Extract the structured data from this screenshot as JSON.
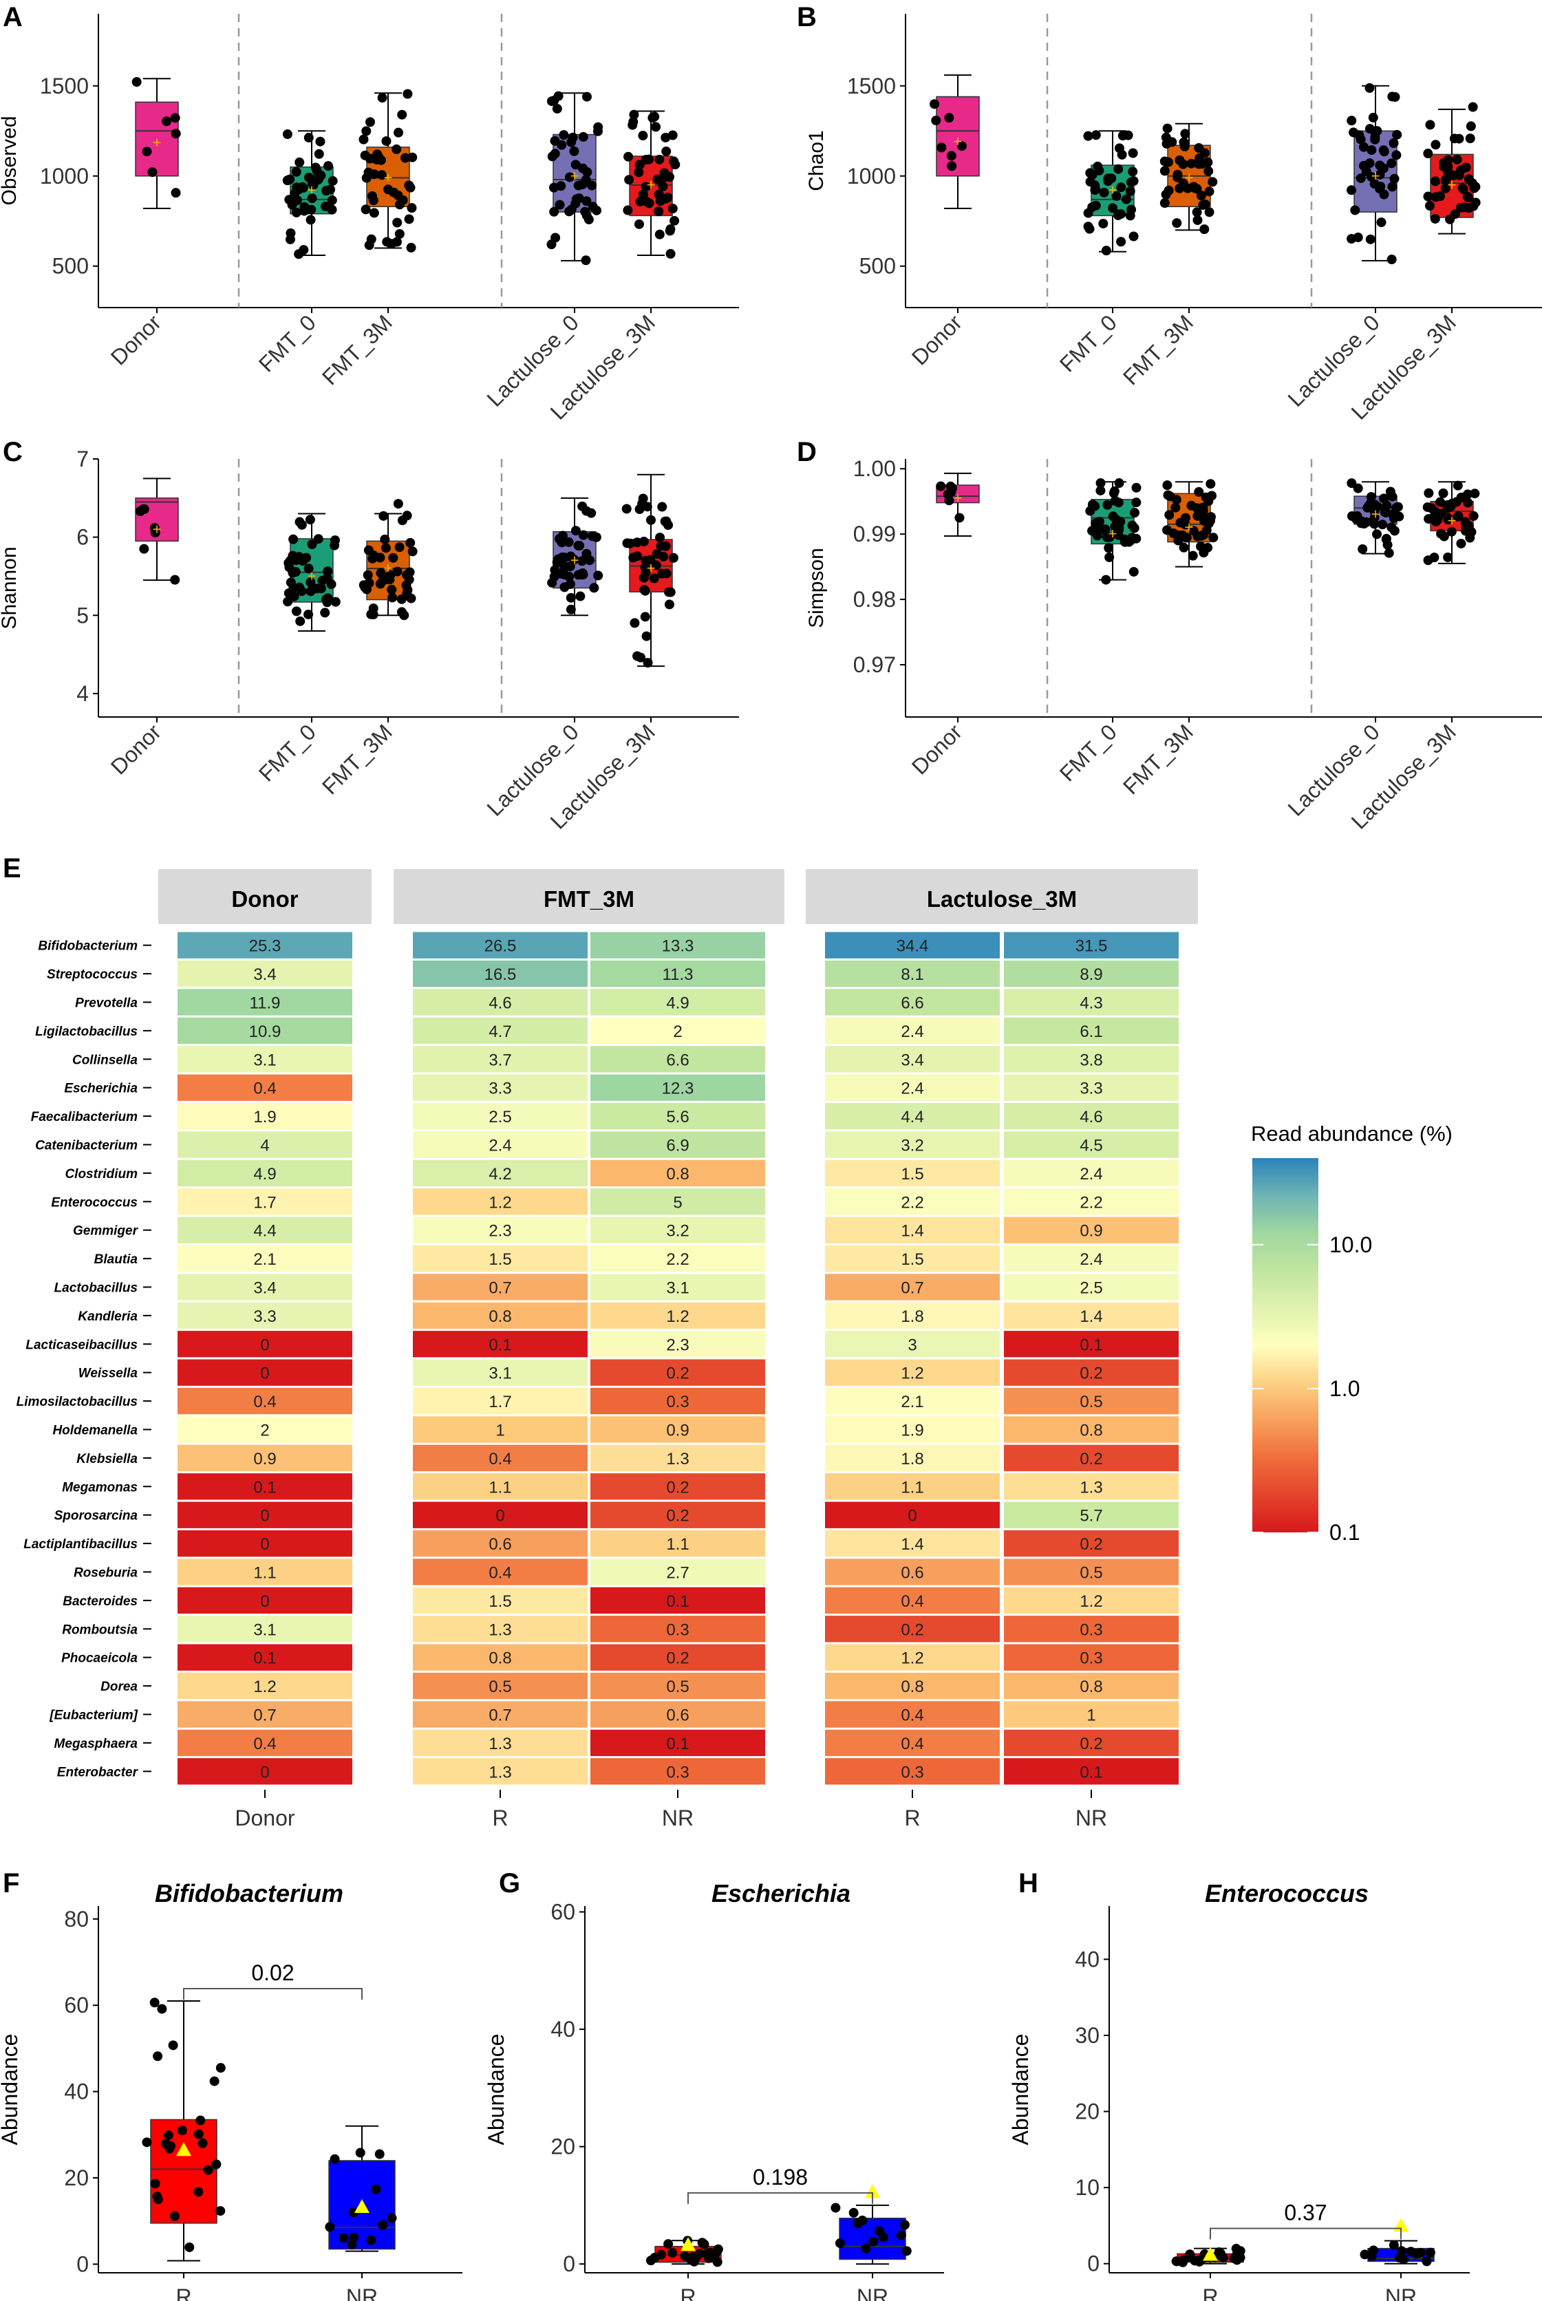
{
  "panel_labels": [
    "A",
    "B",
    "C",
    "D",
    "E",
    "F",
    "G",
    "H"
  ],
  "chart_data": [
    {
      "type": "box",
      "panel": "A",
      "ylabel": "Observed",
      "ylim": [
        270,
        1900
      ],
      "yticks": [
        500,
        1000,
        1500
      ],
      "categories": [
        "Donor",
        "FMT_0",
        "FMT_3M",
        "Lactulose_0",
        "Lactulose_3M"
      ],
      "colors": [
        "#e7298a",
        "#1b9e77",
        "#d95f02",
        "#7570b3",
        "#e41a1c"
      ],
      "boxes": [
        {
          "q1": 1000,
          "median": 1250,
          "q3": 1410,
          "lo": 820,
          "hi": 1540,
          "mean": 1185
        },
        {
          "q1": 790,
          "median": 870,
          "q3": 1050,
          "lo": 560,
          "hi": 1250,
          "mean": 920
        },
        {
          "q1": 830,
          "median": 990,
          "q3": 1160,
          "lo": 600,
          "hi": 1460,
          "mean": 990
        },
        {
          "q1": 800,
          "median": 980,
          "q3": 1230,
          "lo": 530,
          "hi": 1460,
          "mean": 1000
        },
        {
          "q1": 780,
          "median": 950,
          "q3": 1110,
          "lo": 560,
          "hi": 1360,
          "mean": 950
        }
      ]
    },
    {
      "type": "box",
      "panel": "B",
      "ylabel": "Chao1",
      "ylim": [
        270,
        1900
      ],
      "yticks": [
        500,
        1000,
        1500
      ],
      "categories": [
        "Donor",
        "FMT_0",
        "FMT_3M",
        "Lactulose_0",
        "Lactulose_3M"
      ],
      "colors": [
        "#e7298a",
        "#1b9e77",
        "#d95f02",
        "#7570b3",
        "#e41a1c"
      ],
      "boxes": [
        {
          "q1": 1000,
          "median": 1250,
          "q3": 1440,
          "lo": 820,
          "hi": 1560,
          "mean": 1190
        },
        {
          "q1": 780,
          "median": 870,
          "q3": 1060,
          "lo": 580,
          "hi": 1250,
          "mean": 920
        },
        {
          "q1": 830,
          "median": 1000,
          "q3": 1170,
          "lo": 700,
          "hi": 1290,
          "mean": 990
        },
        {
          "q1": 800,
          "median": 990,
          "q3": 1250,
          "lo": 530,
          "hi": 1500,
          "mean": 1000
        },
        {
          "q1": 770,
          "median": 960,
          "q3": 1120,
          "lo": 680,
          "hi": 1370,
          "mean": 950
        }
      ]
    },
    {
      "type": "box",
      "panel": "C",
      "ylabel": "Shannon",
      "ylim": [
        3.7,
        7.0
      ],
      "yticks": [
        4,
        5,
        6,
        7
      ],
      "categories": [
        "Donor",
        "FMT_0",
        "FMT_3M",
        "Lactulose_0",
        "Lactulose_3M"
      ],
      "colors": [
        "#e7298a",
        "#1b9e77",
        "#d95f02",
        "#7570b3",
        "#e41a1c"
      ],
      "boxes": [
        {
          "q1": 5.95,
          "median": 6.45,
          "q3": 6.5,
          "lo": 5.45,
          "hi": 6.75,
          "mean": 6.1
        },
        {
          "q1": 5.17,
          "median": 5.55,
          "q3": 5.98,
          "lo": 4.8,
          "hi": 6.3,
          "mean": 5.5
        },
        {
          "q1": 5.2,
          "median": 5.6,
          "q3": 5.95,
          "lo": 5.0,
          "hi": 6.3,
          "mean": 5.6
        },
        {
          "q1": 5.35,
          "median": 5.7,
          "q3": 6.07,
          "lo": 5.0,
          "hi": 6.5,
          "mean": 5.7
        },
        {
          "q1": 5.3,
          "median": 5.63,
          "q3": 5.97,
          "lo": 4.35,
          "hi": 6.8,
          "mean": 5.6
        }
      ]
    },
    {
      "type": "box",
      "panel": "D",
      "ylabel": "Simpson",
      "ylim": [
        0.962,
        1.0015
      ],
      "yticks": [
        0.97,
        0.98,
        0.99,
        1.0
      ],
      "ytick_labels": [
        "0.97",
        "0.98",
        "0.99",
        "1.00"
      ],
      "categories": [
        "Donor",
        "FMT_0",
        "FMT_3M",
        "Lactulose_0",
        "Lactulose_3M"
      ],
      "colors": [
        "#e7298a",
        "#1b9e77",
        "#d95f02",
        "#7570b3",
        "#e41a1c"
      ],
      "boxes": [
        {
          "q1": 0.9948,
          "median": 0.9958,
          "q3": 0.9975,
          "lo": 0.9897,
          "hi": 0.9993,
          "mean": 0.9955
        },
        {
          "q1": 0.9885,
          "median": 0.9925,
          "q3": 0.9953,
          "lo": 0.983,
          "hi": 0.998,
          "mean": 0.99
        },
        {
          "q1": 0.9888,
          "median": 0.9915,
          "q3": 0.9962,
          "lo": 0.985,
          "hi": 0.998,
          "mean": 0.991
        },
        {
          "q1": 0.9915,
          "median": 0.994,
          "q3": 0.9958,
          "lo": 0.987,
          "hi": 0.998,
          "mean": 0.993
        },
        {
          "q1": 0.9905,
          "median": 0.9935,
          "q3": 0.995,
          "lo": 0.9855,
          "hi": 0.998,
          "mean": 0.992
        }
      ]
    },
    {
      "type": "heatmap",
      "panel": "E",
      "facets": [
        {
          "title": "Donor",
          "columns": [
            "Donor"
          ]
        },
        {
          "title": "FMT_3M",
          "columns": [
            "R",
            "NR"
          ]
        },
        {
          "title": "Lactulose_3M",
          "columns": [
            "R",
            "NR"
          ]
        }
      ],
      "legend_title": "Read abundance (%)",
      "legend_ticks": [
        "10.0",
        "1.0",
        "0.1"
      ],
      "rows": [
        {
          "genus": "Bifidobacterium",
          "values": [
            "25.3",
            "26.5",
            "13.3",
            "34.4",
            "31.5"
          ]
        },
        {
          "genus": "Streptococcus",
          "values": [
            "3.4",
            "16.5",
            "11.3",
            "8.1",
            "8.9"
          ]
        },
        {
          "genus": "Prevotella",
          "values": [
            "11.9",
            "4.6",
            "4.9",
            "6.6",
            "4.3"
          ]
        },
        {
          "genus": "Ligilactobacillus",
          "values": [
            "10.9",
            "4.7",
            "2",
            "2.4",
            "6.1"
          ]
        },
        {
          "genus": "Collinsella",
          "values": [
            "3.1",
            "3.7",
            "6.6",
            "3.4",
            "3.8"
          ]
        },
        {
          "genus": "Escherichia",
          "values": [
            "0.4",
            "3.3",
            "12.3",
            "2.4",
            "3.3"
          ]
        },
        {
          "genus": "Faecalibacterium",
          "values": [
            "1.9",
            "2.5",
            "5.6",
            "4.4",
            "4.6"
          ]
        },
        {
          "genus": "Catenibacterium",
          "values": [
            "4",
            "2.4",
            "6.9",
            "3.2",
            "4.5"
          ]
        },
        {
          "genus": "Clostridium",
          "values": [
            "4.9",
            "4.2",
            "0.8",
            "1.5",
            "2.4"
          ]
        },
        {
          "genus": "Enterococcus",
          "values": [
            "1.7",
            "1.2",
            "5",
            "2.2",
            "2.2"
          ]
        },
        {
          "genus": "Gemmiger",
          "values": [
            "4.4",
            "2.3",
            "3.2",
            "1.4",
            "0.9"
          ]
        },
        {
          "genus": "Blautia",
          "values": [
            "2.1",
            "1.5",
            "2.2",
            "1.5",
            "2.4"
          ]
        },
        {
          "genus": "Lactobacillus",
          "values": [
            "3.4",
            "0.7",
            "3.1",
            "0.7",
            "2.5"
          ]
        },
        {
          "genus": "Kandleria",
          "values": [
            "3.3",
            "0.8",
            "1.2",
            "1.8",
            "1.4"
          ]
        },
        {
          "genus": "Lacticaseibacillus",
          "values": [
            "0",
            "0.1",
            "2.3",
            "3",
            "0.1"
          ]
        },
        {
          "genus": "Weissella",
          "values": [
            "0",
            "3.1",
            "0.2",
            "1.2",
            "0.2"
          ]
        },
        {
          "genus": "Limosilactobacillus",
          "values": [
            "0.4",
            "1.7",
            "0.3",
            "2.1",
            "0.5"
          ]
        },
        {
          "genus": "Holdemanella",
          "values": [
            "2",
            "1",
            "0.9",
            "1.9",
            "0.8"
          ]
        },
        {
          "genus": "Klebsiella",
          "values": [
            "0.9",
            "0.4",
            "1.3",
            "1.8",
            "0.2"
          ]
        },
        {
          "genus": "Megamonas",
          "values": [
            "0.1",
            "1.1",
            "0.2",
            "1.1",
            "1.3"
          ]
        },
        {
          "genus": "Sporosarcina",
          "values": [
            "0",
            "0",
            "0.2",
            "0",
            "5.7"
          ]
        },
        {
          "genus": "Lactiplantibacillus",
          "values": [
            "0",
            "0.6",
            "1.1",
            "1.4",
            "0.2"
          ]
        },
        {
          "genus": "Roseburia",
          "values": [
            "1.1",
            "0.4",
            "2.7",
            "0.6",
            "0.5"
          ]
        },
        {
          "genus": "Bacteroides",
          "values": [
            "0",
            "1.5",
            "0.1",
            "0.4",
            "1.2"
          ]
        },
        {
          "genus": "Romboutsia",
          "values": [
            "3.1",
            "1.3",
            "0.3",
            "0.2",
            "0.3"
          ]
        },
        {
          "genus": "Phocaeicola",
          "values": [
            "0.1",
            "0.8",
            "0.2",
            "1.2",
            "0.3"
          ]
        },
        {
          "genus": "Dorea",
          "values": [
            "1.2",
            "0.5",
            "0.5",
            "0.8",
            "0.8"
          ]
        },
        {
          "genus": "[Eubacterium]",
          "values": [
            "0.7",
            "0.7",
            "0.6",
            "0.4",
            "1"
          ]
        },
        {
          "genus": "Megasphaera",
          "values": [
            "0.4",
            "1.3",
            "0.1",
            "0.4",
            "0.2"
          ]
        },
        {
          "genus": "Enterobacter",
          "values": [
            "0",
            "1.3",
            "0.3",
            "0.3",
            "0.1"
          ]
        }
      ]
    },
    {
      "type": "box",
      "panel": "F",
      "title": "Bifidobacterium",
      "ylabel": "Abundance",
      "ylim": [
        -2,
        83
      ],
      "yticks": [
        0,
        20,
        40,
        60,
        80
      ],
      "categories": [
        "R",
        "NR"
      ],
      "colors": [
        "#ff0000",
        "#0000ff"
      ],
      "pvalue": "0.02",
      "boxes": [
        {
          "q1": 9.5,
          "median": 22,
          "q3": 33.5,
          "lo": 0.8,
          "hi": 61,
          "mean": 26.5
        },
        {
          "q1": 3.5,
          "median": 8.5,
          "q3": 24,
          "lo": 3,
          "hi": 32,
          "mean": 13.3
        }
      ]
    },
    {
      "type": "box",
      "panel": "G",
      "title": "Escherichia",
      "ylabel": "Abundance",
      "ylim": [
        -1.5,
        61
      ],
      "yticks": [
        0,
        20,
        40,
        60
      ],
      "categories": [
        "R",
        "NR"
      ],
      "colors": [
        "#ff0000",
        "#0000ff"
      ],
      "pvalue": "0.198",
      "boxes": [
        {
          "q1": 0.3,
          "median": 1.5,
          "q3": 3,
          "lo": 0,
          "hi": 4,
          "mean": 3.3
        },
        {
          "q1": 0.8,
          "median": 3,
          "q3": 7.8,
          "lo": 0,
          "hi": 10,
          "mean": 12.3
        }
      ]
    },
    {
      "type": "box",
      "panel": "H",
      "title": "Enterococcus",
      "ylabel": "Abundance",
      "ylim": [
        -1.2,
        47
      ],
      "yticks": [
        0,
        10,
        20,
        30,
        40
      ],
      "categories": [
        "R",
        "NR"
      ],
      "colors": [
        "#ff0000",
        "#0000ff"
      ],
      "pvalue": "0.37",
      "boxes": [
        {
          "q1": 0.2,
          "median": 0.6,
          "q3": 1.3,
          "lo": 0,
          "hi": 2,
          "mean": 1.2
        },
        {
          "q1": 0.3,
          "median": 0.7,
          "q3": 2,
          "lo": 0,
          "hi": 3,
          "mean": 5
        }
      ]
    }
  ]
}
